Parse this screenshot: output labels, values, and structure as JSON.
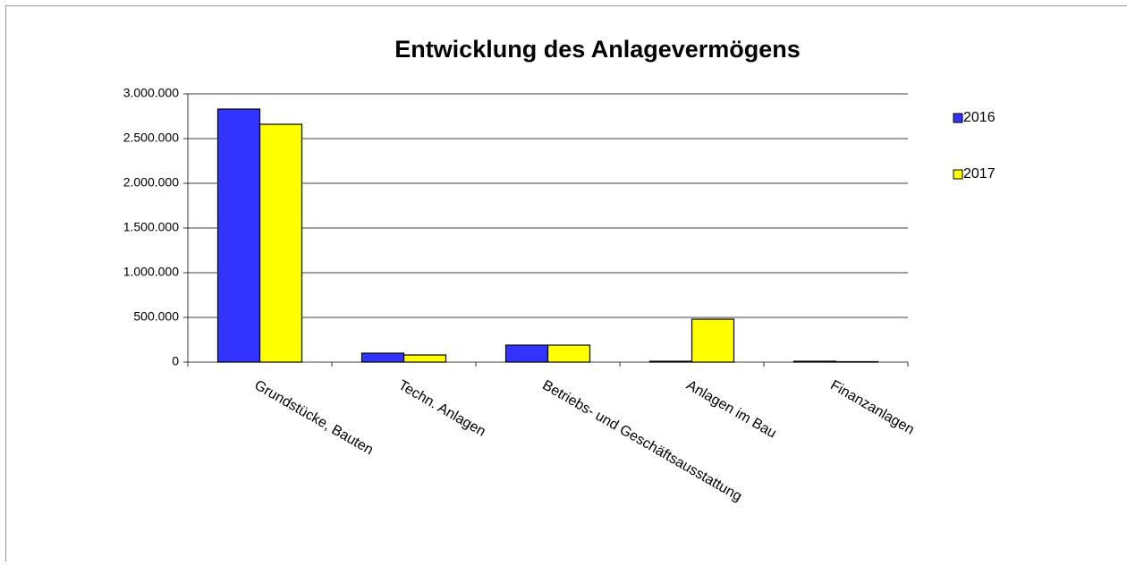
{
  "chart_data": {
    "type": "bar",
    "title": "Entwicklung des Anlagevermögens",
    "categories": [
      "Grundstücke, Bauten",
      "Techn. Anlagen",
      "Betriebs- und Geschäftsausstattung",
      "Anlagen im Bau",
      "Finanzanlagen"
    ],
    "series": [
      {
        "name": "2016",
        "color": "#3333ff",
        "values": [
          2830000,
          100000,
          190000,
          10000,
          10000
        ]
      },
      {
        "name": "2017",
        "color": "#ffff00",
        "values": [
          2660000,
          80000,
          190000,
          480000,
          5000
        ]
      }
    ],
    "ylim": [
      0,
      3000000
    ],
    "yticks": [
      0,
      {
        "value": 500000,
        "label": "500.000"
      },
      {
        "value": 1000000,
        "label": "1.000.000"
      },
      {
        "value": 1500000,
        "label": "1.500.000"
      },
      {
        "value": 2000000,
        "label": "2.000.000"
      },
      {
        "value": 2500000,
        "label": "2.500.000"
      },
      {
        "value": 3000000,
        "label": "3.000.000"
      }
    ],
    "grid": true,
    "legend": "right"
  }
}
